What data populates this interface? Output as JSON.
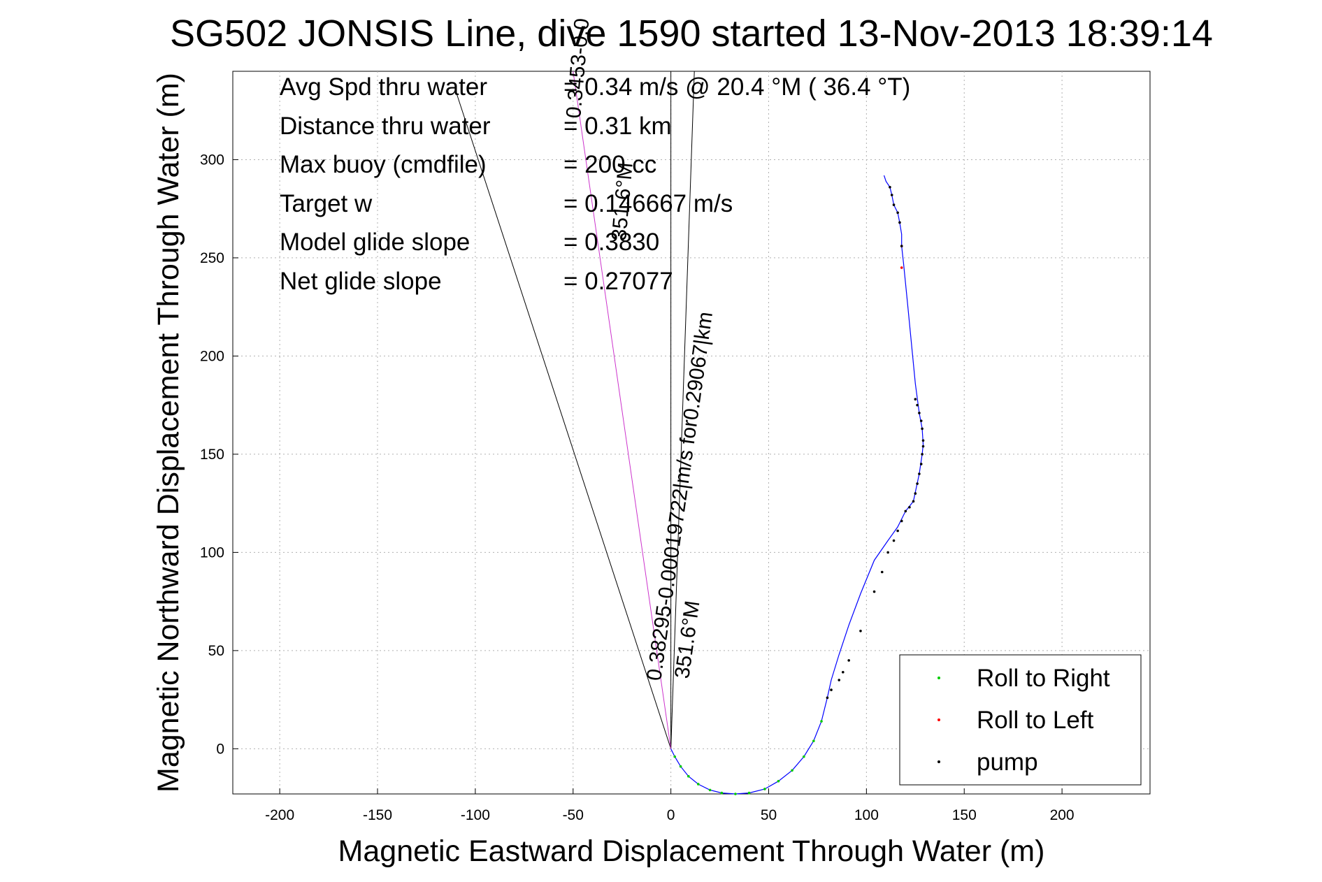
{
  "chart_data": {
    "type": "line",
    "title": "SG502 JONSIS Line, dive 1590 started 13-Nov-2013 18:39:14",
    "xlabel": "Magnetic Eastward Displacement Through Water (m)",
    "ylabel": "Magnetic Northward Displacement Through Water (m)",
    "xlim": [
      -224,
      245
    ],
    "ylim": [
      -23,
      345
    ],
    "xticks": [
      -200,
      -150,
      -100,
      -50,
      0,
      50,
      100,
      150,
      200
    ],
    "yticks": [
      0,
      50,
      100,
      150,
      200,
      250,
      300
    ],
    "grid": true,
    "legend_position": "bottom-right",
    "info_rows": [
      {
        "label": "Avg Spd thru water",
        "value": "=  0.34 m/s @  20.4 °M ( 36.4 °T)"
      },
      {
        "label": "Distance thru water",
        "value": "=  0.31 km"
      },
      {
        "label": "Max buoy (cmdfile)",
        "value": "= 200 cc"
      },
      {
        "label": "Target w",
        "value": "= 0.146667 m/s"
      },
      {
        "label": "Model glide slope",
        "value": "= 0.3830"
      },
      {
        "label": "Net glide slope",
        "value": "= 0.27077"
      }
    ],
    "annotations": [
      "0.38295-0.00019722|m/s for0.29067|km",
      "351.6°M",
      "0.3453-0.0",
      "351.6°M"
    ],
    "series": [
      {
        "name": "track",
        "color": "#0000ff",
        "x": [
          0,
          2,
          5,
          9,
          14,
          20,
          26,
          33,
          40,
          48,
          55,
          62,
          68,
          73,
          77,
          80,
          82,
          86,
          91,
          97,
          104,
          111,
          116,
          120,
          124,
          127,
          128.5,
          129,
          128.5,
          127,
          125,
          121,
          119,
          118,
          118,
          117,
          116,
          114,
          113,
          112,
          110,
          109
        ],
        "y": [
          0,
          -4,
          -9,
          -14,
          -18,
          -21,
          -22.5,
          -23,
          -22.5,
          -20.5,
          -16.5,
          -11,
          -4,
          4,
          14,
          26,
          35,
          48,
          63,
          79,
          96,
          106,
          113,
          121,
          126,
          140,
          150,
          155,
          163,
          171,
          186,
          227,
          247,
          256,
          262,
          268,
          273,
          277,
          282,
          286,
          289,
          292
        ]
      },
      {
        "name": "Roll to Right",
        "color": "#00cc00",
        "x": [
          2,
          5,
          9,
          14,
          20,
          26,
          33,
          40,
          48,
          55,
          62,
          68,
          73,
          77
        ],
        "y": [
          -4,
          -9,
          -14,
          -18,
          -21,
          -22.5,
          -23,
          -22.5,
          -20.5,
          -16.5,
          -11,
          -4,
          4,
          14
        ]
      },
      {
        "name": "Roll to Left",
        "color": "#ff0000",
        "x": [
          118,
          118
        ],
        "y": [
          245,
          256
        ]
      },
      {
        "name": "pump",
        "color": "#000000",
        "x": [
          80,
          82,
          86,
          88,
          91,
          97,
          104,
          108,
          111,
          114,
          116,
          118,
          120,
          122,
          124,
          125,
          126,
          127,
          128,
          128.5,
          129,
          129,
          128.5,
          128,
          127,
          126,
          125,
          118,
          117,
          116,
          114,
          113,
          112
        ],
        "y": [
          26,
          30,
          35,
          39,
          45,
          60,
          80,
          90,
          100,
          106,
          111,
          116,
          121,
          123,
          126,
          130,
          135,
          140,
          145,
          150,
          154,
          157,
          163,
          167,
          171,
          175,
          178,
          256,
          268,
          273,
          277,
          282,
          286
        ]
      }
    ],
    "reference_lines": [
      {
        "x": [
          0,
          -110
        ],
        "y": [
          0,
          335
        ]
      },
      {
        "x": [
          0,
          0
        ],
        "y": [
          0,
          345
        ]
      },
      {
        "x": [
          0,
          12
        ],
        "y": [
          0,
          345
        ]
      },
      {
        "x": [
          0,
          -50
        ],
        "y": [
          0,
          345
        ]
      }
    ]
  },
  "legend": {
    "items": [
      {
        "label": "Roll to Right",
        "color": "#00cc00"
      },
      {
        "label": "Roll to Left",
        "color": "#ff0000"
      },
      {
        "label": "pump",
        "color": "#000000"
      }
    ]
  }
}
